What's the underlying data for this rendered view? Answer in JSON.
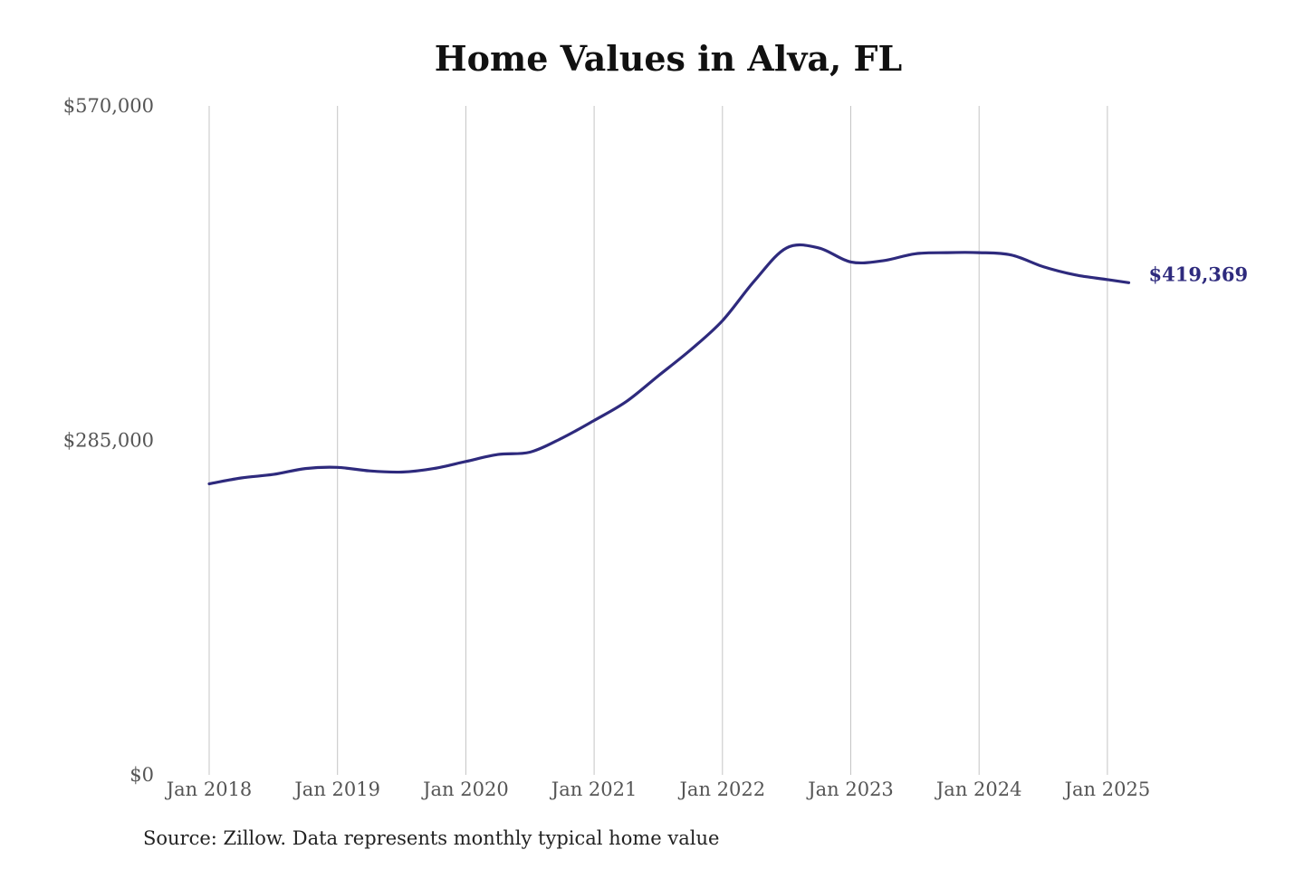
{
  "chart_data": {
    "type": "line",
    "title": "Home Values in Alva, FL",
    "source": "Source: Zillow. Data represents monthly typical home value",
    "xlabel": "",
    "ylabel": "",
    "ylim": [
      0,
      570000
    ],
    "y_ticks": [
      {
        "value": 0,
        "label": "$0"
      },
      {
        "value": 285000,
        "label": "$285,000"
      },
      {
        "value": 570000,
        "label": "$570,000"
      }
    ],
    "x_ticks": [
      {
        "value": "2018-01",
        "label": "Jan 2018"
      },
      {
        "value": "2019-01",
        "label": "Jan 2019"
      },
      {
        "value": "2020-01",
        "label": "Jan 2020"
      },
      {
        "value": "2021-01",
        "label": "Jan 2021"
      },
      {
        "value": "2022-01",
        "label": "Jan 2022"
      },
      {
        "value": "2023-01",
        "label": "Jan 2023"
      },
      {
        "value": "2024-01",
        "label": "Jan 2024"
      },
      {
        "value": "2025-01",
        "label": "Jan 2025"
      }
    ],
    "grid": {
      "vertical": true,
      "horizontal": false
    },
    "line_color": "#2e2a7d",
    "series": [
      {
        "points": [
          {
            "x": "2018-01",
            "y": 248000
          },
          {
            "x": "2018-04",
            "y": 253000
          },
          {
            "x": "2018-07",
            "y": 256000
          },
          {
            "x": "2018-10",
            "y": 261000
          },
          {
            "x": "2019-01",
            "y": 262000
          },
          {
            "x": "2019-04",
            "y": 259000
          },
          {
            "x": "2019-07",
            "y": 258000
          },
          {
            "x": "2019-10",
            "y": 261000
          },
          {
            "x": "2020-01",
            "y": 267000
          },
          {
            "x": "2020-04",
            "y": 273000
          },
          {
            "x": "2020-07",
            "y": 275000
          },
          {
            "x": "2020-10",
            "y": 287000
          },
          {
            "x": "2021-01",
            "y": 302000
          },
          {
            "x": "2021-04",
            "y": 318000
          },
          {
            "x": "2021-07",
            "y": 340000
          },
          {
            "x": "2021-10",
            "y": 362000
          },
          {
            "x": "2022-01",
            "y": 387000
          },
          {
            "x": "2022-04",
            "y": 421000
          },
          {
            "x": "2022-07",
            "y": 449000
          },
          {
            "x": "2022-10",
            "y": 449000
          },
          {
            "x": "2023-01",
            "y": 437000
          },
          {
            "x": "2023-04",
            "y": 438000
          },
          {
            "x": "2023-07",
            "y": 444000
          },
          {
            "x": "2023-10",
            "y": 445000
          },
          {
            "x": "2024-01",
            "y": 445000
          },
          {
            "x": "2024-04",
            "y": 443000
          },
          {
            "x": "2024-07",
            "y": 433000
          },
          {
            "x": "2024-10",
            "y": 426000
          },
          {
            "x": "2025-01",
            "y": 422000
          },
          {
            "x": "2025-03",
            "y": 419369
          }
        ]
      }
    ],
    "end_label": "$419,369"
  }
}
